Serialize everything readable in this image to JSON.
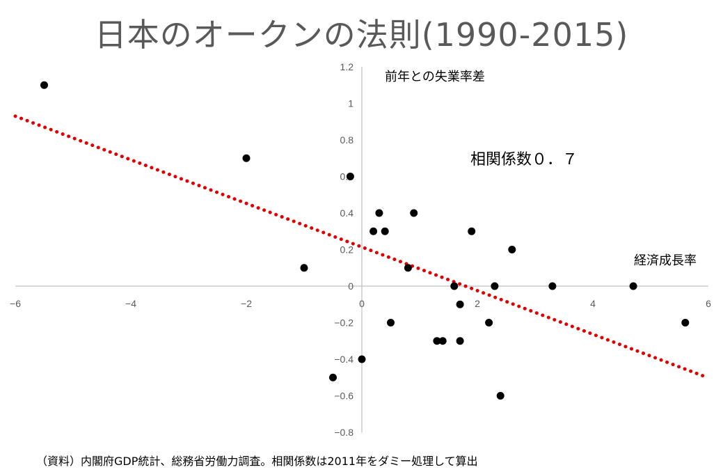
{
  "title": "日本のオークンの法則(1990-2015)",
  "source_note": "（資料）内閣府GDP統計、総務省労働力調査。相関係数は2011年をダミー処理して算出",
  "chart_data": {
    "type": "scatter",
    "xlim": [
      -6,
      6
    ],
    "ylim": [
      -0.8,
      1.2
    ],
    "x_ticks": [
      -6,
      -4,
      -2,
      0,
      2,
      4,
      6
    ],
    "x_tick_labels": [
      "−6",
      "−4",
      "−2",
      "0",
      "2",
      "4",
      "6"
    ],
    "y_ticks": [
      -0.8,
      -0.6,
      -0.4,
      -0.2,
      0,
      0.2,
      0.4,
      0.6,
      0.8,
      1,
      1.2
    ],
    "y_tick_labels": [
      "−0.8",
      "−0.6",
      "−0.4",
      "−0.2",
      "0",
      "0.2",
      "0.4",
      "0.6",
      "0.8",
      "1",
      "1.2"
    ],
    "ylabel": "前年との失業率差",
    "xlabel": "経済成長率",
    "correlation_label": "相関係数０．７",
    "grid": false,
    "point_color": "#000000",
    "trend_color": "#e00000",
    "points": [
      {
        "x": -5.5,
        "y": 1.1
      },
      {
        "x": -2.0,
        "y": 0.7
      },
      {
        "x": -1.0,
        "y": 0.1
      },
      {
        "x": -0.5,
        "y": -0.5
      },
      {
        "x": -0.2,
        "y": 0.6
      },
      {
        "x": 0.0,
        "y": -0.4
      },
      {
        "x": 0.2,
        "y": 0.3
      },
      {
        "x": 0.3,
        "y": 0.4
      },
      {
        "x": 0.4,
        "y": 0.3
      },
      {
        "x": 0.5,
        "y": -0.2
      },
      {
        "x": 0.8,
        "y": 0.1
      },
      {
        "x": 0.9,
        "y": 0.4
      },
      {
        "x": 1.3,
        "y": -0.3
      },
      {
        "x": 1.4,
        "y": -0.3
      },
      {
        "x": 1.6,
        "y": 0.0
      },
      {
        "x": 1.7,
        "y": -0.1
      },
      {
        "x": 1.7,
        "y": -0.3
      },
      {
        "x": 1.9,
        "y": 0.3
      },
      {
        "x": 2.2,
        "y": -0.2
      },
      {
        "x": 2.3,
        "y": 0.0
      },
      {
        "x": 2.4,
        "y": -0.6
      },
      {
        "x": 2.6,
        "y": 0.2
      },
      {
        "x": 3.3,
        "y": 0.0
      },
      {
        "x": 4.7,
        "y": 0.0
      },
      {
        "x": 5.6,
        "y": -0.2
      }
    ],
    "trendline": {
      "x": [
        -6.0,
        5.9
      ],
      "y": [
        0.93,
        -0.49
      ]
    }
  }
}
